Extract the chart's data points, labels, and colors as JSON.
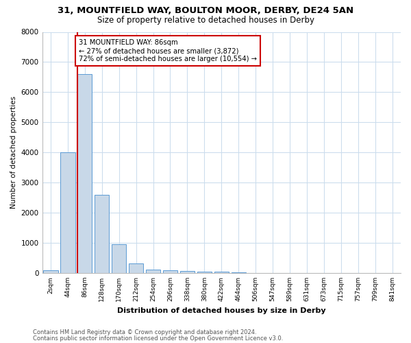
{
  "title1": "31, MOUNTFIELD WAY, BOULTON MOOR, DERBY, DE24 5AN",
  "title2": "Size of property relative to detached houses in Derby",
  "xlabel": "Distribution of detached houses by size in Derby",
  "ylabel": "Number of detached properties",
  "bar_labels": [
    "2sqm",
    "44sqm",
    "86sqm",
    "128sqm",
    "170sqm",
    "212sqm",
    "254sqm",
    "296sqm",
    "338sqm",
    "380sqm",
    "422sqm",
    "464sqm",
    "506sqm",
    "547sqm",
    "589sqm",
    "631sqm",
    "673sqm",
    "715sqm",
    "757sqm",
    "799sqm",
    "841sqm"
  ],
  "bar_values": [
    100,
    4000,
    6600,
    2600,
    950,
    320,
    120,
    100,
    60,
    40,
    50,
    10,
    5,
    5,
    3,
    2,
    2,
    2,
    1,
    1,
    1
  ],
  "bar_color": "#c8d8e8",
  "bar_edge_color": "#5b9bd5",
  "red_line_index": 2,
  "red_line_color": "#cc0000",
  "annotation_line1": "31 MOUNTFIELD WAY: 86sqm",
  "annotation_line2": "← 27% of detached houses are smaller (3,872)",
  "annotation_line3": "72% of semi-detached houses are larger (10,554) →",
  "annotation_box_color": "#cc0000",
  "ylim": [
    0,
    8000
  ],
  "yticks": [
    0,
    1000,
    2000,
    3000,
    4000,
    5000,
    6000,
    7000,
    8000
  ],
  "footer1": "Contains HM Land Registry data © Crown copyright and database right 2024.",
  "footer2": "Contains public sector information licensed under the Open Government Licence v3.0.",
  "bg_color": "#ffffff",
  "grid_color": "#ccdded",
  "title1_fontsize": 9.5,
  "title2_fontsize": 8.5
}
